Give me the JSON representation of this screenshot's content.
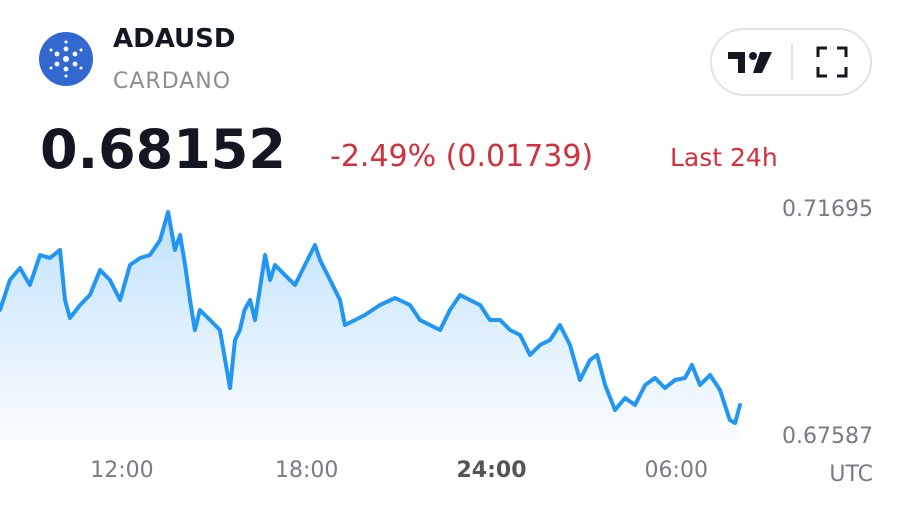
{
  "header": {
    "symbol": "ADAUSD",
    "name": "CARDANO",
    "price": "0.68152",
    "change": "-2.49% (0.01739)",
    "period": "Last 24h"
  },
  "chart_data": {
    "type": "line",
    "x": [
      8.04,
      8.36,
      8.69,
      9.01,
      9.34,
      9.66,
      9.99,
      10.15,
      10.31,
      10.64,
      10.96,
      11.29,
      11.61,
      11.94,
      12.26,
      12.59,
      12.91,
      13.24,
      13.5,
      13.72,
      13.89,
      14.05,
      14.21,
      14.37,
      14.53,
      14.86,
      15.18,
      15.35,
      15.51,
      15.67,
      15.83,
      15.98,
      16.16,
      16.32,
      16.65,
      16.81,
      16.97,
      17.29,
      17.62,
      17.94,
      18.27,
      18.43,
      18.76,
      19.08,
      19.24,
      19.57,
      19.89,
      20.38,
      20.87,
      21.35,
      21.68,
      22.0,
      22.33,
      22.65,
      22.98,
      23.3,
      23.63,
      23.95,
      24.28,
      24.6,
      24.93,
      25.25,
      25.58,
      25.9,
      26.22,
      26.55,
      26.87,
      27.2,
      27.43,
      27.69,
      28.01,
      28.34,
      28.66,
      28.99,
      29.31,
      29.63,
      29.96,
      30.28,
      30.51,
      30.77,
      31.1,
      31.42,
      31.74,
      31.91,
      32.07
    ],
    "series": [
      {
        "color": "#2196f3",
        "values": [
          0.69885,
          0.70428,
          0.70645,
          0.70338,
          0.70881,
          0.70826,
          0.70971,
          0.70066,
          0.69741,
          0.69976,
          0.70157,
          0.70609,
          0.70428,
          0.70066,
          0.707,
          0.70826,
          0.70881,
          0.71152,
          0.71659,
          0.70971,
          0.71243,
          0.707,
          0.70066,
          0.69523,
          0.69885,
          0.69704,
          0.69523,
          0.68981,
          0.68474,
          0.69342,
          0.69523,
          0.69885,
          0.70066,
          0.69704,
          0.70881,
          0.70428,
          0.707,
          0.70519,
          0.70338,
          0.707,
          0.71062,
          0.7079,
          0.70428,
          0.70066,
          0.69614,
          0.69704,
          0.69795,
          0.69976,
          0.70103,
          0.69976,
          0.69704,
          0.69614,
          0.69523,
          0.69885,
          0.70157,
          0.70066,
          0.69976,
          0.69704,
          0.69704,
          0.69523,
          0.69433,
          0.69071,
          0.69252,
          0.69342,
          0.69614,
          0.69252,
          0.68619,
          0.68981,
          0.69071,
          0.68528,
          0.68076,
          0.68293,
          0.68166,
          0.68528,
          0.68655,
          0.68474,
          0.68619,
          0.68655,
          0.6889,
          0.68528,
          0.68709,
          0.68438,
          0.67895,
          0.6784,
          0.68166
        ]
      }
    ],
    "xlim": [
      8.04,
      32.07
    ],
    "xticks": [
      {
        "value": 12,
        "label": "12:00"
      },
      {
        "value": 18,
        "label": "18:00"
      },
      {
        "value": 24,
        "label": "24:00"
      },
      {
        "value": 30,
        "label": "06:00"
      }
    ],
    "xlabel": "UTC",
    "ylim": [
      0.67587,
      0.71695
    ],
    "yticks": [
      0.71695,
      0.67587
    ],
    "grid": false
  }
}
